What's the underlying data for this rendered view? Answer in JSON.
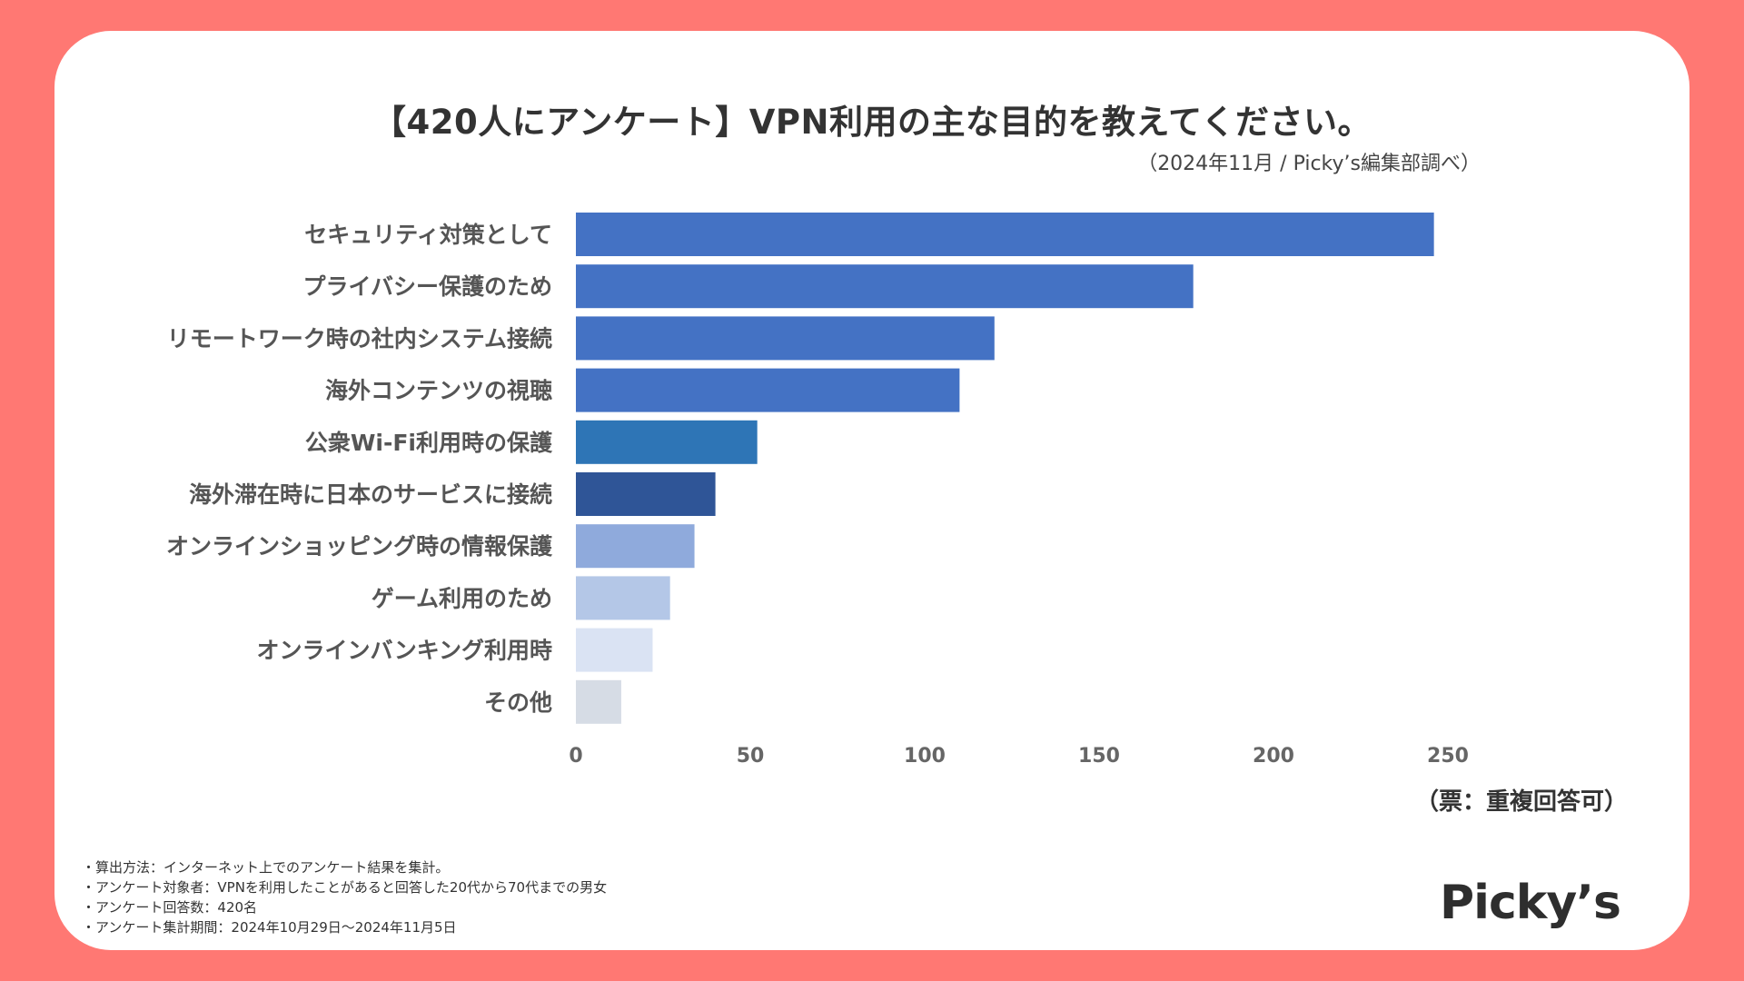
{
  "title": "【420人にアンケート】VPN利用の主な目的を教えてください。",
  "subtitle": "（2024年11月 / Picky’s編集部調べ）",
  "unit_note": "（票：重複回答可）",
  "notes": [
    "・算出方法：インターネット上でのアンケート結果を集計。",
    "・アンケート対象者：VPNを利用したことがあると回答した20代から70代までの男女",
    "・アンケート回答数：420名",
    "・アンケート集計期間：2024年10月29日〜2024年11月5日"
  ],
  "logo": "Picky’s",
  "chart_data": {
    "type": "bar",
    "orientation": "horizontal",
    "title": "【420人にアンケート】VPN利用の主な目的を教えてください。",
    "xlabel": "（票：重複回答可）",
    "ylabel": "",
    "xlim": [
      0,
      250
    ],
    "ticks": [
      0,
      50,
      100,
      150,
      200,
      250
    ],
    "categories": [
      "セキュリティ対策として",
      "プライバシー保護のため",
      "リモートワーク時の社内システム接続",
      "海外コンテンツの視聴",
      "公衆Wi-Fi利用時の保護",
      "海外滞在時に日本のサービスに接続",
      "オンラインショッピング時の情報保護",
      "ゲーム利用のため",
      "オンラインバンキング利用時",
      "その他"
    ],
    "values": [
      246,
      177,
      120,
      110,
      52,
      40,
      34,
      27,
      22,
      13
    ],
    "colors": [
      "#4472c4",
      "#4472c4",
      "#4472c4",
      "#4472c4",
      "#2e75b6",
      "#2f5597",
      "#8faadc",
      "#b4c7e7",
      "#dae3f3",
      "#d6dce5"
    ],
    "grid": false,
    "legend": "none"
  }
}
